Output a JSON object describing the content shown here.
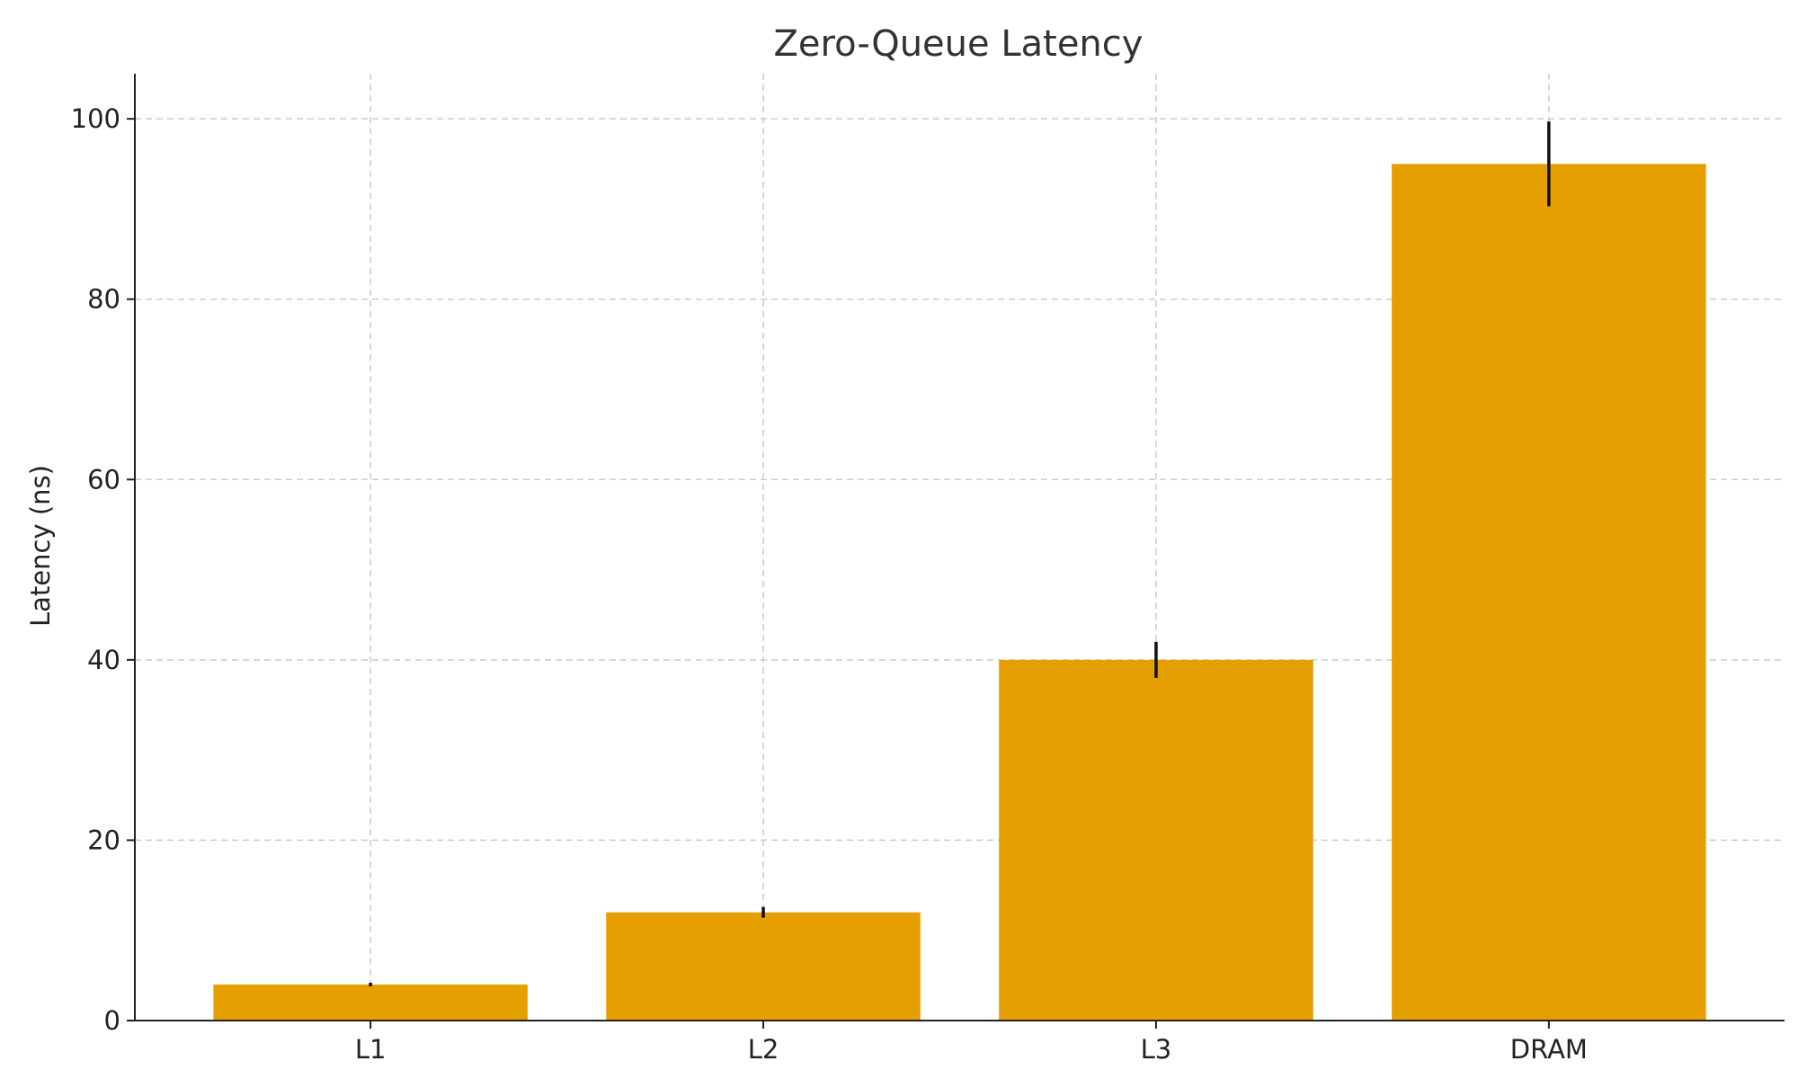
{
  "chart_data": {
    "type": "bar",
    "title": "Zero-Queue Latency",
    "xlabel": "",
    "ylabel": "Latency (ns)",
    "categories": [
      "L1",
      "L2",
      "L3",
      "DRAM"
    ],
    "values": [
      4,
      12,
      40,
      95
    ],
    "errors": [
      0.2,
      0.6,
      2,
      4.7
    ],
    "ylim": [
      0,
      105
    ],
    "yticks": [
      0,
      20,
      40,
      60,
      80,
      100
    ],
    "grid": true,
    "colors": {
      "bar": "#E69F00",
      "error": "#111111"
    }
  }
}
